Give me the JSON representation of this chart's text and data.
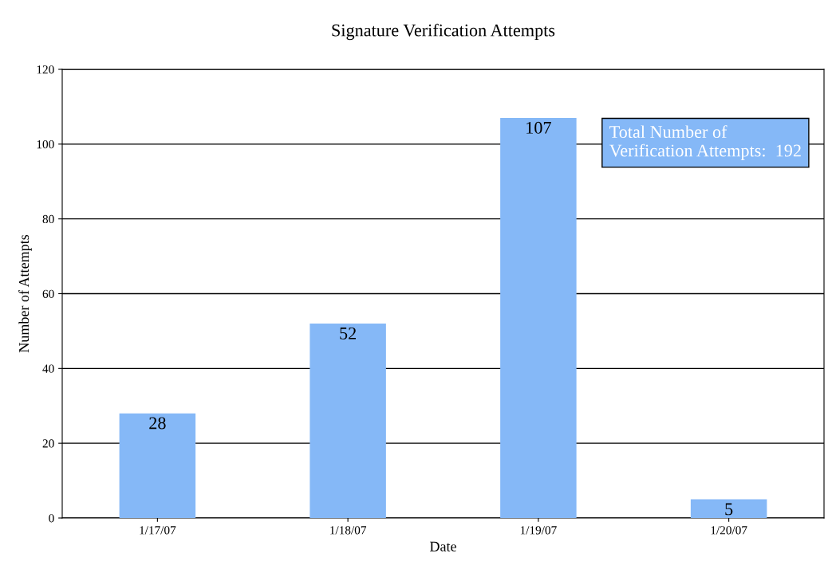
{
  "chart_data": {
    "type": "bar",
    "title": "Signature Verification Attempts",
    "xlabel": "Date",
    "ylabel": "Number of Attempts",
    "categories": [
      "1/17/07",
      "1/18/07",
      "1/19/07",
      "1/20/07"
    ],
    "values": [
      28,
      52,
      107,
      5
    ],
    "color": "#85b8f7",
    "ylim": [
      0,
      120
    ],
    "yticks": [
      0,
      20,
      40,
      60,
      80,
      100,
      120
    ],
    "grid": "y",
    "data_labels": true,
    "annotations": [
      "Total Number of\nVerification Attempts:  192"
    ]
  }
}
